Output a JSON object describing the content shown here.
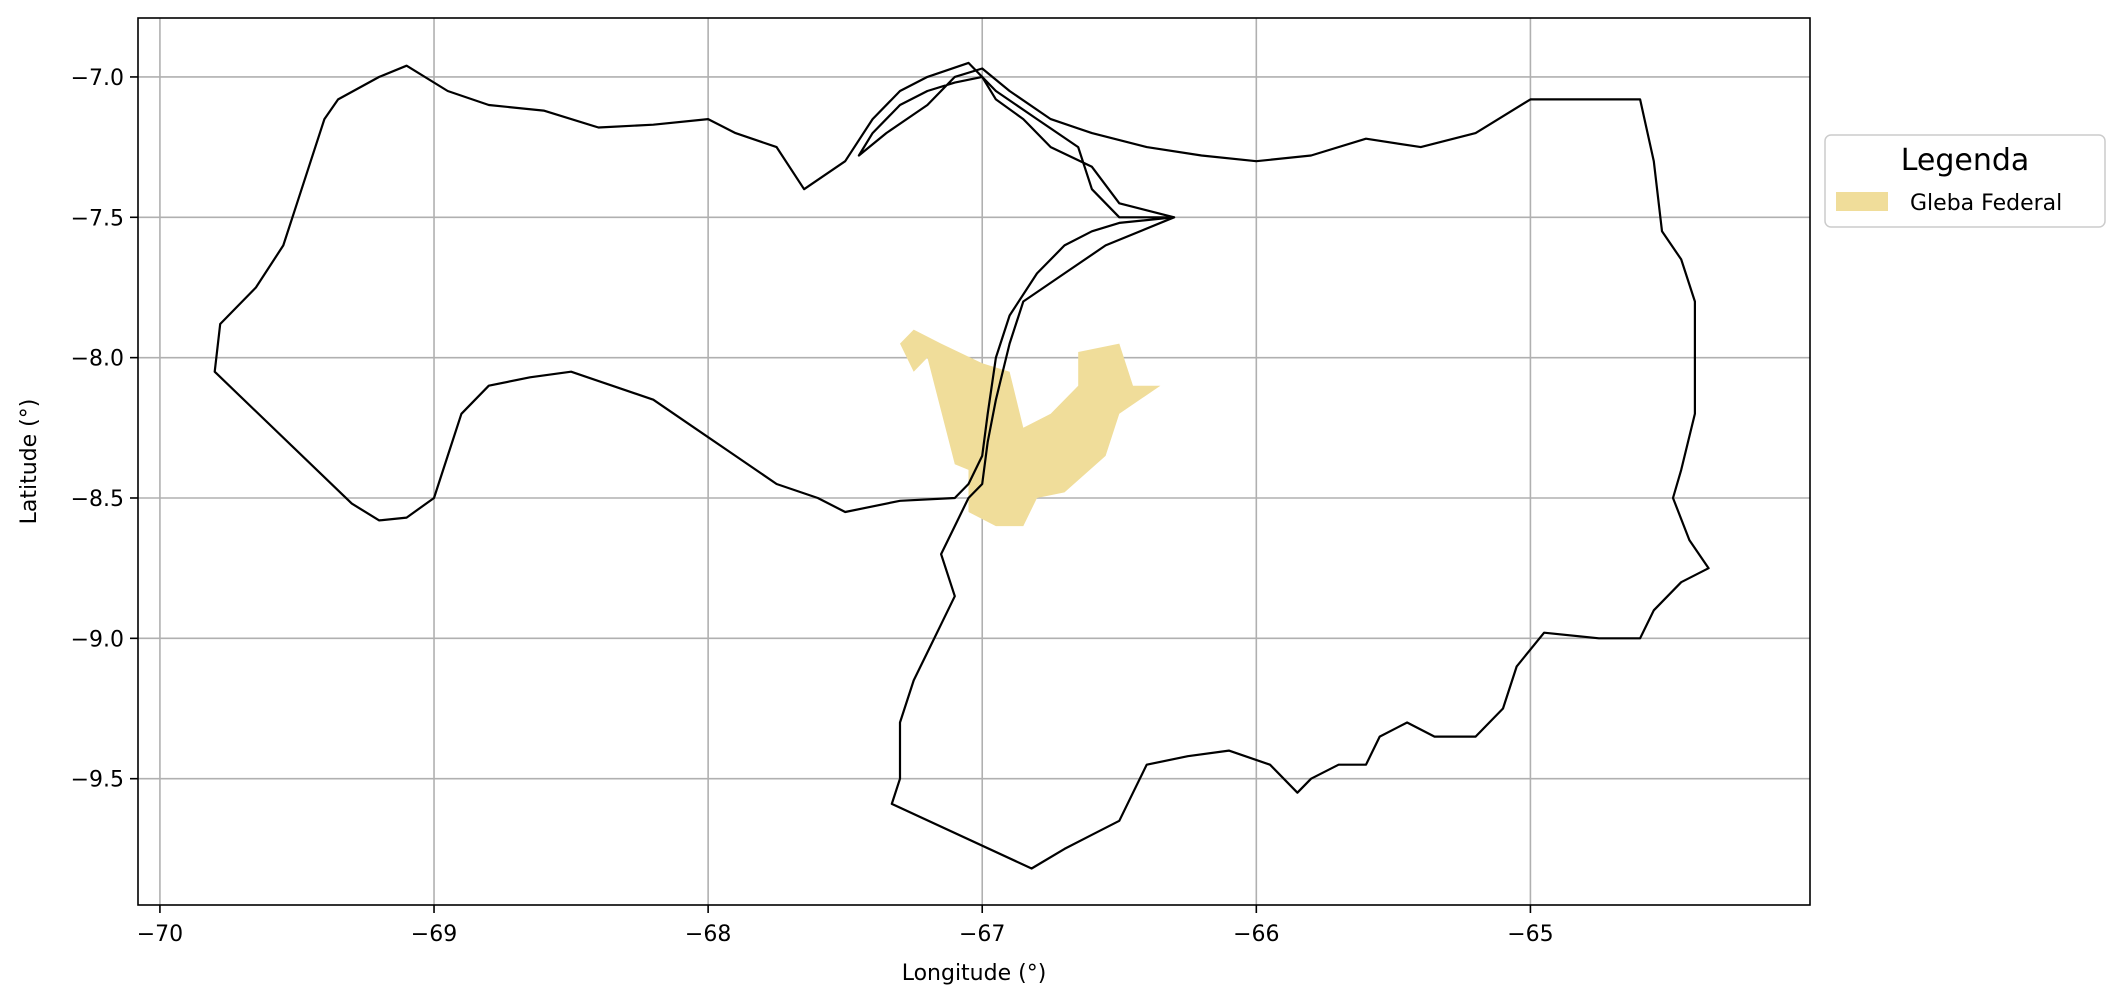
{
  "chart_data": {
    "type": "map",
    "xlabel": "Longitude (°)",
    "ylabel": "Latitude (°)",
    "xlim": [
      -70.08,
      -63.98
    ],
    "ylim": [
      -9.95,
      -6.79
    ],
    "x_ticks": [
      {
        "value": -70,
        "label": "−70"
      },
      {
        "value": -69,
        "label": "−69"
      },
      {
        "value": -68,
        "label": "−68"
      },
      {
        "value": -67,
        "label": "−67"
      },
      {
        "value": -66,
        "label": "−66"
      },
      {
        "value": -65,
        "label": "−65"
      }
    ],
    "y_ticks": [
      {
        "value": -7.0,
        "label": "−7.0"
      },
      {
        "value": -7.5,
        "label": "−7.5"
      },
      {
        "value": -8.0,
        "label": "−8.0"
      },
      {
        "value": -8.5,
        "label": "−8.5"
      },
      {
        "value": -9.0,
        "label": "−9.0"
      },
      {
        "value": -9.5,
        "label": "−9.5"
      }
    ],
    "grid": true,
    "legend": {
      "title": "Legenda",
      "placement": "outside-right-top",
      "entries": [
        {
          "label": "Gleba Federal",
          "color": "#f0dd9a"
        }
      ]
    },
    "boundaries": [
      {
        "name": "boundary-west",
        "points": [
          [
            -67.3,
            -8.51
          ],
          [
            -67.5,
            -8.55
          ],
          [
            -67.6,
            -8.5
          ],
          [
            -67.75,
            -8.45
          ],
          [
            -67.9,
            -8.35
          ],
          [
            -68.05,
            -8.25
          ],
          [
            -68.2,
            -8.15
          ],
          [
            -68.35,
            -8.1
          ],
          [
            -68.5,
            -8.05
          ],
          [
            -68.65,
            -8.07
          ],
          [
            -68.8,
            -8.1
          ],
          [
            -68.9,
            -8.2
          ],
          [
            -68.95,
            -8.35
          ],
          [
            -69.0,
            -8.5
          ],
          [
            -69.1,
            -8.57
          ],
          [
            -69.2,
            -8.58
          ],
          [
            -69.3,
            -8.52
          ],
          [
            -69.8,
            -8.05
          ],
          [
            -69.78,
            -7.88
          ],
          [
            -69.65,
            -7.75
          ],
          [
            -69.55,
            -7.6
          ],
          [
            -69.5,
            -7.45
          ],
          [
            -69.45,
            -7.3
          ],
          [
            -69.4,
            -7.15
          ],
          [
            -69.35,
            -7.08
          ],
          [
            -69.2,
            -7.0
          ],
          [
            -69.1,
            -6.96
          ],
          [
            -68.95,
            -7.05
          ],
          [
            -68.8,
            -7.1
          ],
          [
            -68.6,
            -7.12
          ],
          [
            -68.4,
            -7.18
          ],
          [
            -68.2,
            -7.17
          ],
          [
            -68.0,
            -7.15
          ],
          [
            -67.9,
            -7.2
          ],
          [
            -67.75,
            -7.25
          ],
          [
            -67.65,
            -7.4
          ],
          [
            -67.5,
            -7.3
          ],
          [
            -67.4,
            -7.15
          ],
          [
            -67.3,
            -7.05
          ],
          [
            -67.2,
            -7.0
          ],
          [
            -67.05,
            -6.95
          ],
          [
            -66.95,
            -7.05
          ],
          [
            -66.8,
            -7.15
          ],
          [
            -66.65,
            -7.25
          ],
          [
            -66.6,
            -7.4
          ],
          [
            -66.5,
            -7.5
          ],
          [
            -66.3,
            -7.5
          ],
          [
            -66.5,
            -7.52
          ],
          [
            -66.6,
            -7.55
          ],
          [
            -66.7,
            -7.6
          ],
          [
            -66.8,
            -7.7
          ],
          [
            -66.9,
            -7.85
          ],
          [
            -66.95,
            -8.0
          ],
          [
            -66.98,
            -8.2
          ],
          [
            -67.0,
            -8.35
          ],
          [
            -67.05,
            -8.45
          ],
          [
            -67.1,
            -8.5
          ],
          [
            -67.3,
            -8.51
          ]
        ]
      },
      {
        "name": "boundary-east",
        "points": [
          [
            -66.3,
            -7.5
          ],
          [
            -66.5,
            -7.45
          ],
          [
            -66.6,
            -7.32
          ],
          [
            -66.75,
            -7.25
          ],
          [
            -66.85,
            -7.15
          ],
          [
            -66.95,
            -7.08
          ],
          [
            -67.0,
            -7.0
          ],
          [
            -67.1,
            -7.02
          ],
          [
            -67.2,
            -7.05
          ],
          [
            -67.3,
            -7.1
          ],
          [
            -67.4,
            -7.2
          ],
          [
            -67.45,
            -7.28
          ],
          [
            -67.35,
            -7.2
          ],
          [
            -67.2,
            -7.1
          ],
          [
            -67.1,
            -7.0
          ],
          [
            -67.0,
            -6.97
          ],
          [
            -66.9,
            -7.05
          ],
          [
            -66.75,
            -7.15
          ],
          [
            -66.6,
            -7.2
          ],
          [
            -66.4,
            -7.25
          ],
          [
            -66.2,
            -7.28
          ],
          [
            -66.0,
            -7.3
          ],
          [
            -65.8,
            -7.28
          ],
          [
            -65.6,
            -7.22
          ],
          [
            -65.4,
            -7.25
          ],
          [
            -65.2,
            -7.2
          ],
          [
            -65.0,
            -7.08
          ],
          [
            -64.6,
            -7.08
          ],
          [
            -64.55,
            -7.3
          ],
          [
            -64.52,
            -7.55
          ],
          [
            -64.45,
            -7.65
          ],
          [
            -64.4,
            -7.8
          ],
          [
            -64.4,
            -8.0
          ],
          [
            -64.4,
            -8.2
          ],
          [
            -64.45,
            -8.4
          ],
          [
            -64.48,
            -8.5
          ],
          [
            -64.42,
            -8.65
          ],
          [
            -64.35,
            -8.75
          ],
          [
            -64.45,
            -8.8
          ],
          [
            -64.55,
            -8.9
          ],
          [
            -64.6,
            -9.0
          ],
          [
            -64.75,
            -9.0
          ],
          [
            -64.95,
            -8.98
          ],
          [
            -65.05,
            -9.1
          ],
          [
            -65.1,
            -9.25
          ],
          [
            -65.2,
            -9.35
          ],
          [
            -65.35,
            -9.35
          ],
          [
            -65.45,
            -9.3
          ],
          [
            -65.55,
            -9.35
          ],
          [
            -65.6,
            -9.45
          ],
          [
            -65.7,
            -9.45
          ],
          [
            -65.8,
            -9.5
          ],
          [
            -65.85,
            -9.55
          ],
          [
            -65.95,
            -9.45
          ],
          [
            -66.1,
            -9.4
          ],
          [
            -66.25,
            -9.42
          ],
          [
            -66.4,
            -9.45
          ],
          [
            -66.45,
            -9.55
          ],
          [
            -66.5,
            -9.65
          ],
          [
            -66.6,
            -9.7
          ],
          [
            -66.7,
            -9.75
          ],
          [
            -66.82,
            -9.82
          ],
          [
            -67.33,
            -9.59
          ],
          [
            -67.3,
            -9.5
          ],
          [
            -67.3,
            -9.3
          ],
          [
            -67.25,
            -9.15
          ],
          [
            -67.2,
            -9.05
          ],
          [
            -67.15,
            -8.95
          ],
          [
            -67.1,
            -8.85
          ],
          [
            -67.15,
            -8.7
          ],
          [
            -67.1,
            -8.6
          ],
          [
            -67.05,
            -8.5
          ],
          [
            -67.0,
            -8.45
          ],
          [
            -66.98,
            -8.3
          ],
          [
            -66.95,
            -8.15
          ],
          [
            -66.9,
            -7.95
          ],
          [
            -66.85,
            -7.8
          ],
          [
            -66.7,
            -7.7
          ],
          [
            -66.55,
            -7.6
          ],
          [
            -66.3,
            -7.5
          ]
        ]
      }
    ],
    "regions": [
      {
        "name": "Gleba Federal",
        "points": [
          [
            -67.25,
            -7.9
          ],
          [
            -67.15,
            -7.95
          ],
          [
            -67.0,
            -8.02
          ],
          [
            -66.9,
            -8.05
          ],
          [
            -66.85,
            -8.25
          ],
          [
            -66.75,
            -8.2
          ],
          [
            -66.65,
            -8.1
          ],
          [
            -66.65,
            -7.98
          ],
          [
            -66.5,
            -7.95
          ],
          [
            -66.45,
            -8.1
          ],
          [
            -66.35,
            -8.1
          ],
          [
            -66.5,
            -8.2
          ],
          [
            -66.55,
            -8.35
          ],
          [
            -66.7,
            -8.48
          ],
          [
            -66.8,
            -8.5
          ],
          [
            -66.85,
            -8.6
          ],
          [
            -66.95,
            -8.6
          ],
          [
            -67.05,
            -8.55
          ],
          [
            -67.05,
            -8.4
          ],
          [
            -67.1,
            -8.38
          ],
          [
            -67.2,
            -8.0
          ],
          [
            -67.25,
            -8.05
          ],
          [
            -67.3,
            -7.95
          ],
          [
            -67.25,
            -7.9
          ]
        ]
      }
    ]
  }
}
